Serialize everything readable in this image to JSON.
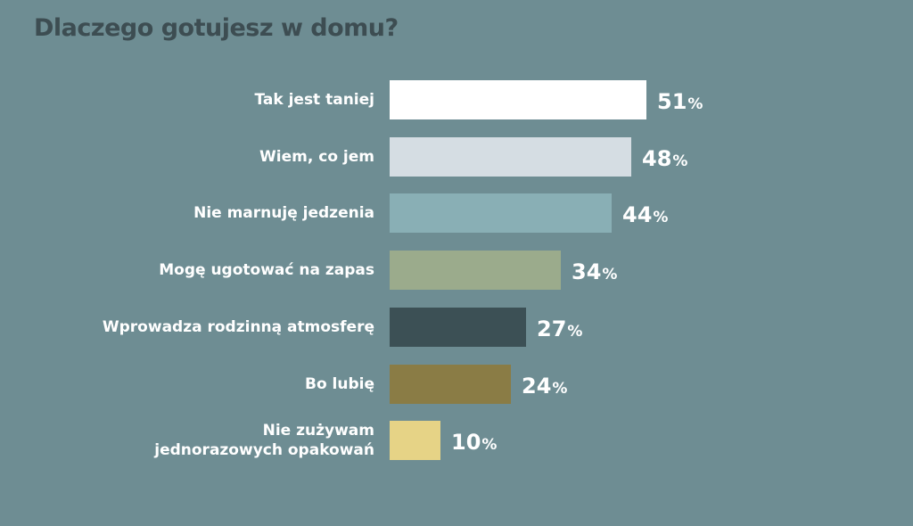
{
  "chart_data": {
    "type": "bar",
    "orientation": "horizontal",
    "title": "Dlaczego gotujesz w domu?",
    "categories": [
      "Tak jest taniej",
      "Wiem, co jem",
      "Nie marnuję jedzenia",
      "Mogę ugotować na zapas",
      "Wprowadza rodzinną atmosferę",
      "Bo lubię",
      "Nie zużywam jednorazowych opakowań"
    ],
    "category_lines": [
      [
        "Tak jest taniej"
      ],
      [
        "Wiem, co jem"
      ],
      [
        "Nie marnuję jedzenia"
      ],
      [
        "Mogę ugotować na zapas"
      ],
      [
        "Wprowadza rodzinną atmosferę"
      ],
      [
        "Bo lubię"
      ],
      [
        "Nie zużywam",
        "jednorazowych opakowań"
      ]
    ],
    "values": [
      51,
      48,
      44,
      34,
      27,
      24,
      10
    ],
    "unit": "%",
    "colors": [
      "#ffffff",
      "#d5dde3",
      "#89afb5",
      "#9bab8c",
      "#3c5055",
      "#8a7c45",
      "#e6d386"
    ],
    "xlim": [
      0,
      100
    ],
    "grid": false,
    "legend": "none"
  }
}
